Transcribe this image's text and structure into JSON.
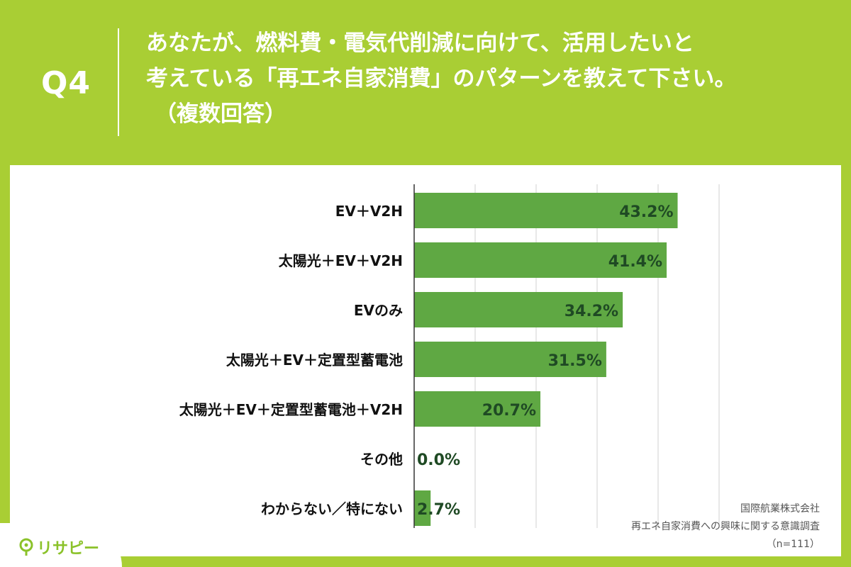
{
  "header": {
    "q_label": "Q4",
    "title_lines": [
      "あなたが、燃料費・電気代削減に向けて、活用したいと",
      "考えている「再エネ自家消費」のパターンを教えて下さい。",
      "（複数回答）"
    ]
  },
  "source": {
    "company": "国際航業株式会社",
    "survey": "再エネ自家消費への興味に関する意識調査",
    "sample": "（n=111）"
  },
  "logo": {
    "text": "リサピー",
    "icon": "pin-icon"
  },
  "colors": {
    "background": "#A9CE34",
    "bar": "#5FA843",
    "value_text": "#1F4A24",
    "grid": "#D0D0D0",
    "axis": "#333333"
  },
  "chart_data": {
    "type": "bar",
    "orientation": "horizontal",
    "categories": [
      "EV＋V2H",
      "太陽光＋EV＋V2H",
      "EVのみ",
      "太陽光＋EV＋定置型蓄電池",
      "太陽光＋EV＋定置型蓄電池＋V2H",
      "その他",
      "わからない／特にない"
    ],
    "values": [
      43.2,
      41.4,
      34.2,
      31.5,
      20.7,
      0.0,
      2.7
    ],
    "value_labels": [
      "43.2%",
      "41.4%",
      "34.2%",
      "31.5%",
      "20.7%",
      "0.0%",
      "2.7%"
    ],
    "xlim": [
      0,
      50
    ],
    "grid": true
  }
}
